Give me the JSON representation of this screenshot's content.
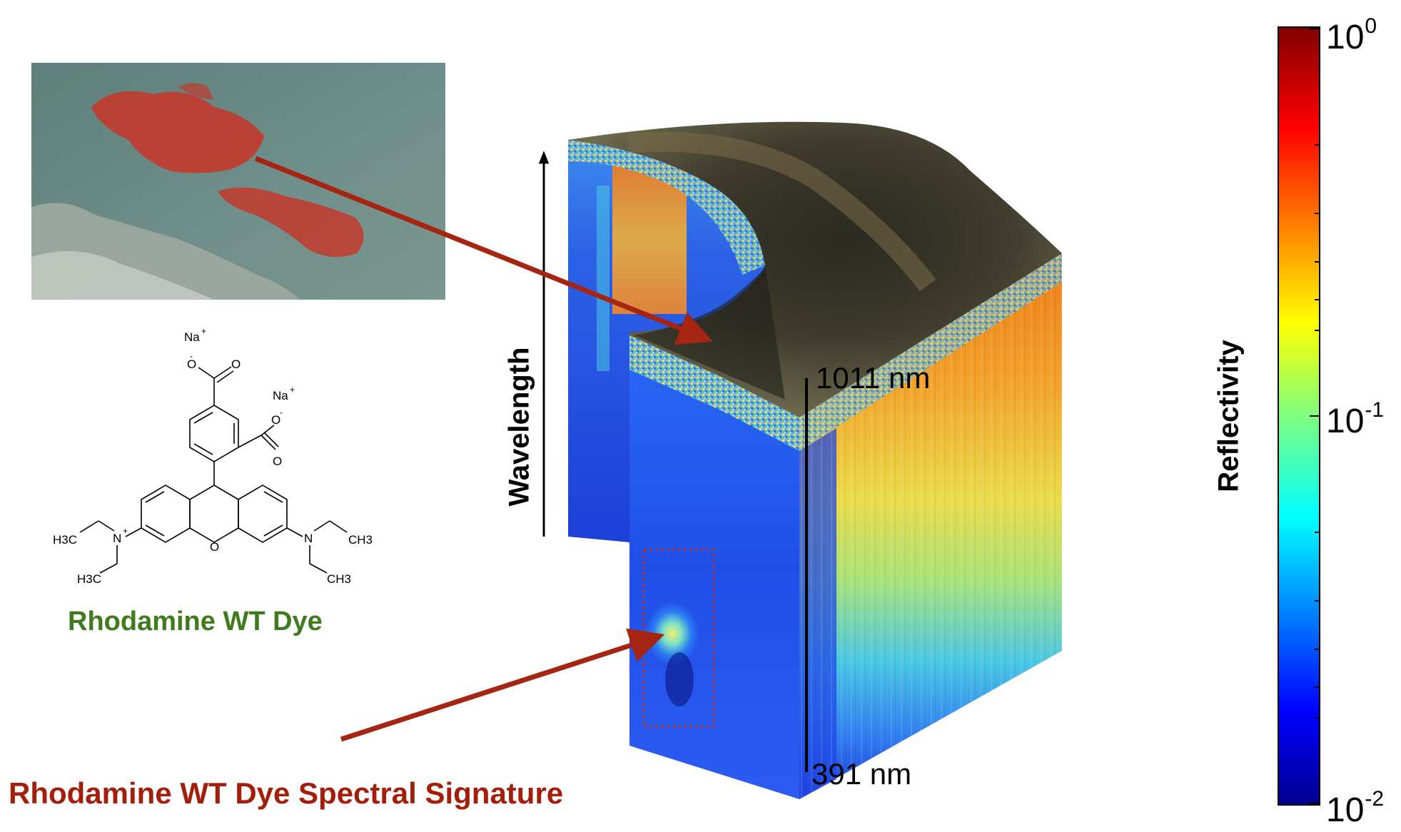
{
  "photo_panel": {
    "description_icon": "aerial-photo-dye-plume"
  },
  "molecule": {
    "atoms": {
      "na1": "Na",
      "na2": "Na",
      "charge_plus": "+",
      "o_minus1": "O",
      "o_minus2": "O",
      "minus": "-",
      "o_carbonyl1": "O",
      "o_carbonyl2": "O",
      "o_ring": "O",
      "n_left": "N",
      "n_right": "N",
      "h3c_top": "H3C",
      "h3c_bottom": "H3C",
      "ch3_top": "CH3",
      "ch3_bottom": "CH3"
    }
  },
  "labels": {
    "dye_title": "Rhodamine WT Dye",
    "signature_title": "Rhodamine WT Dye Spectral Signature",
    "wavelength_axis": "Wavelength",
    "wavelength_top": "1011 nm",
    "wavelength_bottom": "391 nm",
    "colorbar_title": "Reflectivity"
  },
  "colorbar": {
    "ticks": [
      {
        "base": "10",
        "exp": "0"
      },
      {
        "base": "10",
        "exp": "-1"
      },
      {
        "base": "10",
        "exp": "-2"
      }
    ],
    "scale": "log",
    "range": [
      0.01,
      1
    ],
    "colormap": "jet"
  },
  "colors": {
    "dye_red": "#c23a2c",
    "arrow_red": "#a52412",
    "green_title": "#3f7a1c",
    "water": "#6f8f8c"
  }
}
